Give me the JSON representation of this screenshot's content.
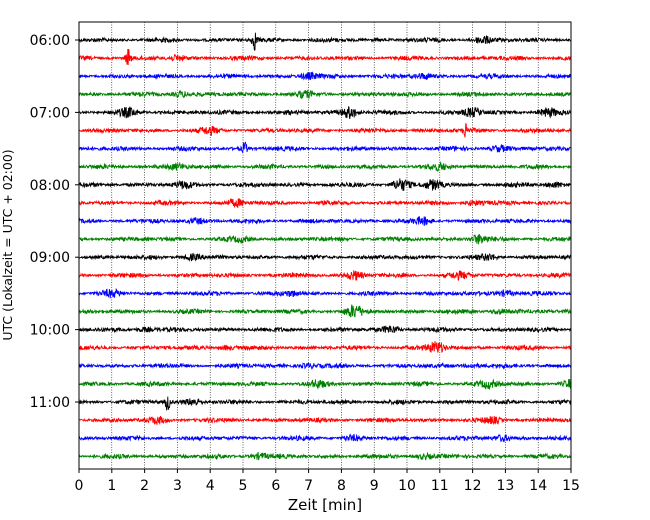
{
  "chart_data": {
    "type": "line",
    "title": "",
    "xlabel": "Zeit  [min]",
    "ylabel": "UTC (Lokalzeit = UTC + 02:00)",
    "xlim": [
      0,
      15
    ],
    "x_ticks": [
      0,
      1,
      2,
      3,
      4,
      5,
      6,
      7,
      8,
      9,
      10,
      11,
      12,
      13,
      14,
      15
    ],
    "x_tick_labels": [
      "0",
      "1",
      "2",
      "3",
      "4",
      "5",
      "6",
      "7",
      "8",
      "9",
      "10",
      "11",
      "12",
      "13",
      "14",
      "15"
    ],
    "y_tick_labels": [
      "06:00",
      "07:00",
      "08:00",
      "09:00",
      "10:00",
      "11:00"
    ],
    "grid": "vertical dotted",
    "trace_interval_min": 15,
    "trace_colors": [
      "#000000",
      "#ff0000",
      "#0000ff",
      "#008000"
    ],
    "traces": [
      {
        "start": "06:00",
        "events": [
          [
            5.35,
            1.0
          ],
          [
            12.3,
            0.35
          ]
        ]
      },
      {
        "start": "06:15",
        "events": [
          [
            1.5,
            1.0
          ],
          [
            3.0,
            0.25
          ]
        ]
      },
      {
        "start": "06:30",
        "events": [
          [
            7.0,
            0.3
          ],
          [
            10.5,
            0.25
          ]
        ]
      },
      {
        "start": "06:45",
        "events": [
          [
            3.1,
            0.3
          ],
          [
            6.9,
            0.25
          ]
        ]
      },
      {
        "start": "07:00",
        "events": [
          [
            1.5,
            0.4
          ],
          [
            8.25,
            0.6
          ],
          [
            12.0,
            0.45
          ],
          [
            14.3,
            0.35
          ]
        ]
      },
      {
        "start": "07:15",
        "events": [
          [
            4.0,
            0.3
          ],
          [
            11.8,
            0.8
          ]
        ]
      },
      {
        "start": "07:30",
        "events": [
          [
            5.05,
            0.7
          ],
          [
            12.8,
            0.3
          ]
        ]
      },
      {
        "start": "07:45",
        "events": [
          [
            3.0,
            0.25
          ],
          [
            11.0,
            0.25
          ]
        ]
      },
      {
        "start": "08:00",
        "events": [
          [
            3.2,
            0.3
          ],
          [
            9.8,
            0.6
          ],
          [
            10.8,
            0.5
          ],
          [
            14.5,
            0.3
          ]
        ]
      },
      {
        "start": "08:15",
        "events": [
          [
            4.8,
            0.35
          ],
          [
            12.0,
            0.25
          ]
        ]
      },
      {
        "start": "08:30",
        "events": [
          [
            3.6,
            0.25
          ],
          [
            10.5,
            0.3
          ]
        ]
      },
      {
        "start": "08:45",
        "events": [
          [
            12.2,
            0.45
          ],
          [
            5.0,
            0.2
          ]
        ]
      },
      {
        "start": "09:00",
        "events": [
          [
            3.4,
            0.3
          ],
          [
            12.5,
            0.25
          ]
        ]
      },
      {
        "start": "09:15",
        "events": [
          [
            8.4,
            0.45
          ],
          [
            11.6,
            0.3
          ]
        ]
      },
      {
        "start": "09:30",
        "events": [
          [
            1.0,
            0.3
          ],
          [
            6.5,
            0.25
          ],
          [
            13.0,
            0.3
          ]
        ]
      },
      {
        "start": "09:45",
        "events": [
          [
            8.4,
            0.6
          ],
          [
            12.8,
            0.25
          ]
        ]
      },
      {
        "start": "10:00",
        "events": [
          [
            9.5,
            0.35
          ],
          [
            2.0,
            0.2
          ]
        ]
      },
      {
        "start": "10:15",
        "events": [
          [
            10.9,
            0.6
          ],
          [
            4.5,
            0.2
          ]
        ]
      },
      {
        "start": "10:30",
        "events": [
          [
            7.0,
            0.25
          ],
          [
            12.0,
            0.2
          ]
        ]
      },
      {
        "start": "10:45",
        "events": [
          [
            7.3,
            0.3
          ],
          [
            12.5,
            0.35
          ],
          [
            15.0,
            0.4
          ]
        ]
      },
      {
        "start": "11:00",
        "events": [
          [
            2.7,
            1.0
          ],
          [
            3.5,
            0.35
          ]
        ]
      },
      {
        "start": "11:15",
        "events": [
          [
            2.4,
            0.3
          ],
          [
            12.6,
            0.25
          ]
        ]
      },
      {
        "start": "11:30",
        "events": [
          [
            8.3,
            0.25
          ],
          [
            12.9,
            0.3
          ]
        ]
      },
      {
        "start": "11:45",
        "events": [
          [
            5.5,
            0.3
          ],
          [
            10.5,
            0.25
          ]
        ]
      }
    ]
  }
}
